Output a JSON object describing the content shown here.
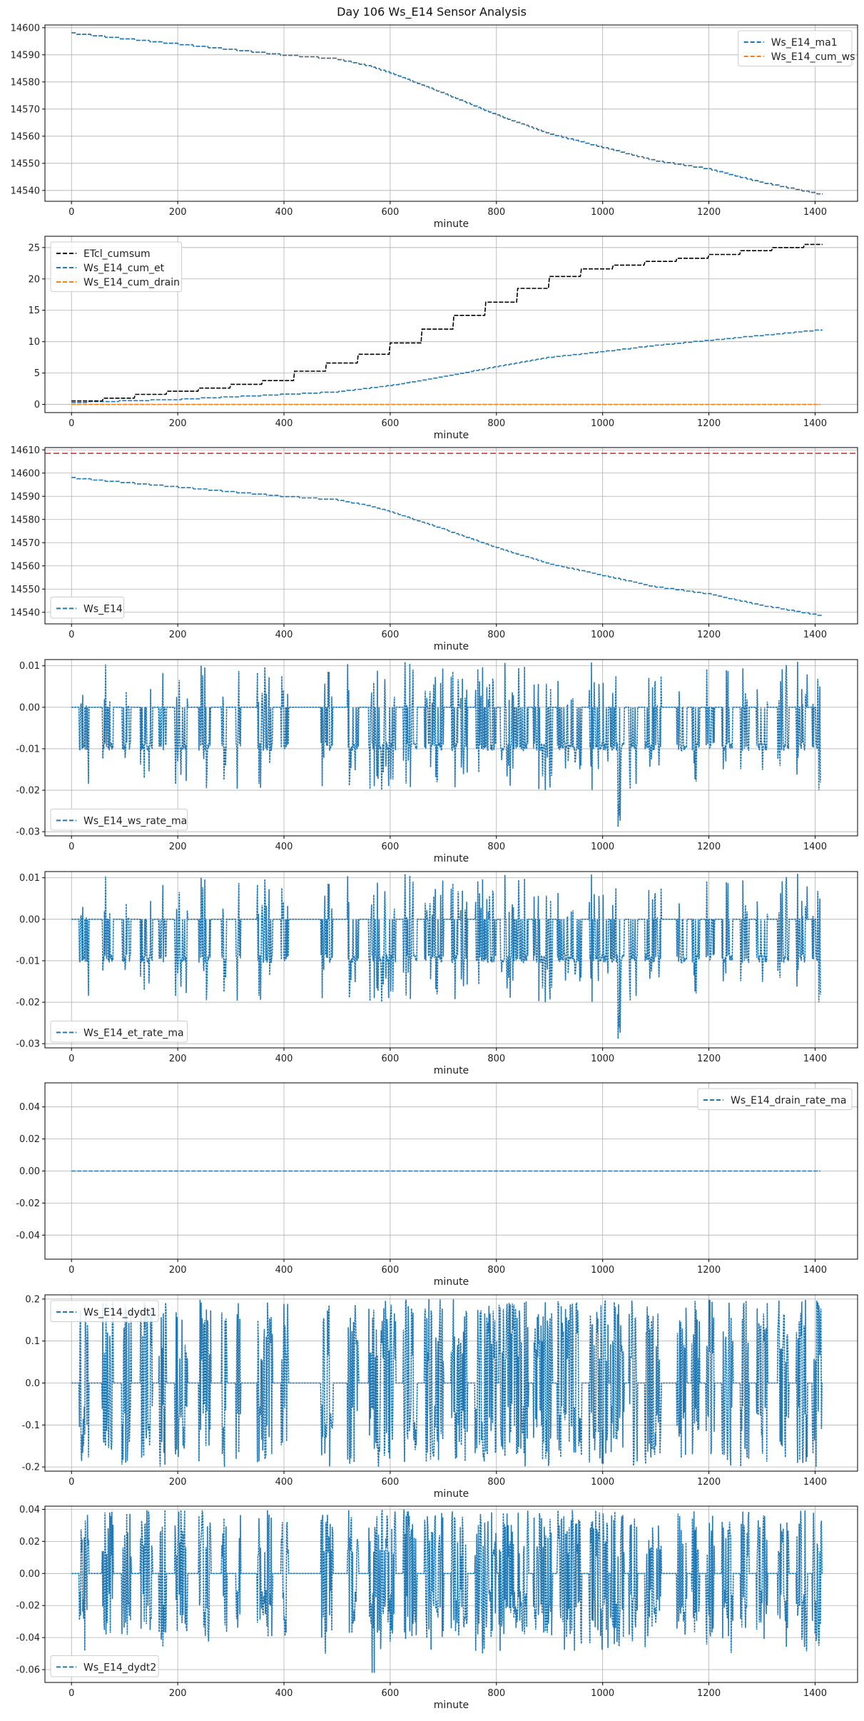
{
  "figure_title": "Day 106 Ws_E14 Sensor Analysis",
  "chart_data": [
    {
      "type": "line",
      "xlabel": "minute",
      "xlim": [
        -50,
        1480
      ],
      "xticks": [
        0,
        200,
        400,
        600,
        800,
        1000,
        1200,
        1400
      ],
      "ylim": [
        14536,
        14601
      ],
      "yticks": [
        14540,
        14550,
        14560,
        14570,
        14580,
        14590,
        14600
      ],
      "legend_loc": "upper right",
      "series": [
        {
          "name": "Ws_E14_ma1",
          "color": "#1f77b4",
          "style": "dashed",
          "kind": "ws"
        },
        {
          "name": "Ws_E14_cum_ws",
          "color": "#ff7f0e",
          "style": "dashed",
          "kind": "ws"
        }
      ]
    },
    {
      "type": "line",
      "xlabel": "minute",
      "xlim": [
        -50,
        1480
      ],
      "xticks": [
        0,
        200,
        400,
        600,
        800,
        1000,
        1200,
        1400
      ],
      "ylim": [
        -1.3,
        26.8
      ],
      "yticks": [
        0,
        5,
        10,
        15,
        20,
        25
      ],
      "legend_loc": "upper left",
      "series": [
        {
          "name": "ETcl_cumsum",
          "color": "#000000",
          "style": "dashed",
          "kind": "etcl"
        },
        {
          "name": "Ws_E14_cum_et",
          "color": "#1f77b4",
          "style": "dashed",
          "kind": "cumet"
        },
        {
          "name": "Ws_E14_cum_drain",
          "color": "#ff7f0e",
          "style": "dashed",
          "kind": "zero"
        }
      ]
    },
    {
      "type": "line",
      "xlabel": "minute",
      "xlim": [
        -50,
        1480
      ],
      "xticks": [
        0,
        200,
        400,
        600,
        800,
        1000,
        1200,
        1400
      ],
      "ylim": [
        14535,
        14611
      ],
      "yticks": [
        14540,
        14550,
        14560,
        14570,
        14580,
        14590,
        14600,
        14610
      ],
      "hline": {
        "y": 14608.5,
        "color": "#d62728"
      },
      "legend_loc": "lower left",
      "series": [
        {
          "name": "Ws_E14",
          "color": "#1f77b4",
          "style": "dashed",
          "kind": "ws"
        }
      ]
    },
    {
      "type": "line",
      "xlabel": "minute",
      "xlim": [
        -50,
        1480
      ],
      "xticks": [
        0,
        200,
        400,
        600,
        800,
        1000,
        1200,
        1400
      ],
      "ylim": [
        -0.031,
        0.0115
      ],
      "yticks": [
        -0.03,
        -0.02,
        -0.01,
        0.0,
        0.01
      ],
      "ytick_labels": [
        "-0.03",
        "-0.02",
        "-0.01",
        "0.00",
        "0.01"
      ],
      "legend_loc": "lower left",
      "series": [
        {
          "name": "Ws_E14_ws_rate_ma",
          "color": "#1f77b4",
          "style": "dashed",
          "kind": "rate",
          "seed": 11
        }
      ]
    },
    {
      "type": "line",
      "xlabel": "minute",
      "xlim": [
        -50,
        1480
      ],
      "xticks": [
        0,
        200,
        400,
        600,
        800,
        1000,
        1200,
        1400
      ],
      "ylim": [
        -0.031,
        0.0115
      ],
      "yticks": [
        -0.03,
        -0.02,
        -0.01,
        0.0,
        0.01
      ],
      "ytick_labels": [
        "-0.03",
        "-0.02",
        "-0.01",
        "0.00",
        "0.01"
      ],
      "legend_loc": "lower left",
      "series": [
        {
          "name": "Ws_E14_et_rate_ma",
          "color": "#1f77b4",
          "style": "dashed",
          "kind": "rate",
          "seed": 11
        }
      ]
    },
    {
      "type": "line",
      "xlabel": "minute",
      "xlim": [
        -50,
        1480
      ],
      "xticks": [
        0,
        200,
        400,
        600,
        800,
        1000,
        1200,
        1400
      ],
      "ylim": [
        -0.055,
        0.055
      ],
      "yticks": [
        -0.04,
        -0.02,
        0.0,
        0.02,
        0.04
      ],
      "ytick_labels": [
        "-0.04",
        "-0.02",
        "0.00",
        "0.02",
        "0.04"
      ],
      "legend_loc": "upper right",
      "series": [
        {
          "name": "Ws_E14_drain_rate_ma",
          "color": "#1f77b4",
          "style": "dashed",
          "kind": "zero"
        }
      ]
    },
    {
      "type": "line",
      "xlabel": "minute",
      "xlim": [
        -50,
        1480
      ],
      "xticks": [
        0,
        200,
        400,
        600,
        800,
        1000,
        1200,
        1400
      ],
      "ylim": [
        -0.21,
        0.21
      ],
      "yticks": [
        -0.2,
        -0.1,
        0.0,
        0.1,
        0.2
      ],
      "ytick_labels": [
        "-0.2",
        "-0.1",
        "0.0",
        "0.1",
        "0.2"
      ],
      "legend_loc": "upper left",
      "series": [
        {
          "name": "Ws_E14_dydt1",
          "color": "#1f77b4",
          "style": "dashed",
          "kind": "dydt1",
          "seed": 23
        }
      ]
    },
    {
      "type": "line",
      "xlabel": "minute",
      "xlim": [
        -50,
        1480
      ],
      "xticks": [
        0,
        200,
        400,
        600,
        800,
        1000,
        1200,
        1400
      ],
      "ylim": [
        -0.068,
        0.042
      ],
      "yticks": [
        -0.06,
        -0.04,
        -0.02,
        0.0,
        0.02,
        0.04
      ],
      "ytick_labels": [
        "-0.06",
        "-0.04",
        "-0.02",
        "0.00",
        "0.02",
        "0.04"
      ],
      "legend_loc": "lower left",
      "series": [
        {
          "name": "Ws_E14_dydt2",
          "color": "#1f77b4",
          "style": "dashed",
          "kind": "dydt2",
          "seed": 37
        }
      ]
    }
  ]
}
